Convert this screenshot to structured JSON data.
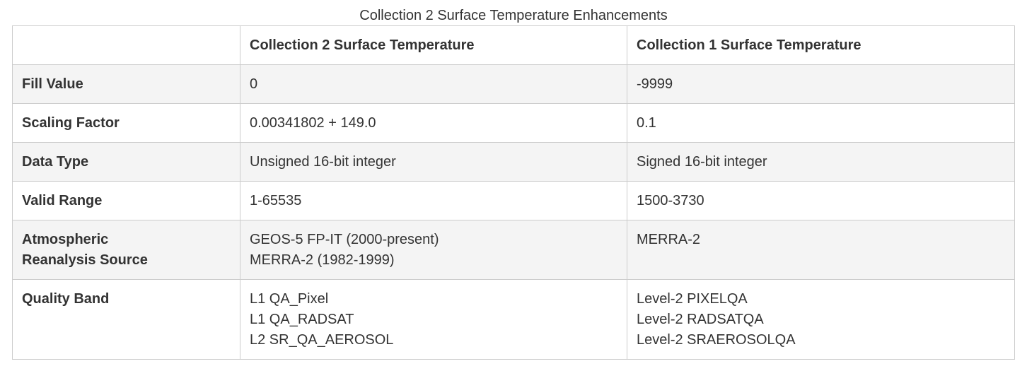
{
  "caption": "Collection 2 Surface Temperature Enhancements",
  "table": {
    "headers": [
      "",
      "Collection 2 Surface Temperature",
      "Collection 1 Surface Temperature"
    ],
    "rows": [
      {
        "label": "Fill Value",
        "c2": [
          "0"
        ],
        "c1": [
          "-9999"
        ]
      },
      {
        "label": "Scaling Factor",
        "c2": [
          "0.00341802 + 149.0"
        ],
        "c1": [
          "0.1"
        ]
      },
      {
        "label": "Data Type",
        "c2": [
          "Unsigned 16-bit integer"
        ],
        "c1": [
          "Signed 16-bit integer"
        ]
      },
      {
        "label": "Valid Range",
        "c2": [
          "1-65535"
        ],
        "c1": [
          "1500-3730"
        ]
      },
      {
        "label": "Atmospheric Reanalysis Source",
        "label_lines": [
          "Atmospheric",
          "Reanalysis Source"
        ],
        "c2": [
          "GEOS-5 FP-IT (2000-present)",
          "MERRA-2 (1982-1999)"
        ],
        "c1": [
          "MERRA-2"
        ]
      },
      {
        "label": "Quality Band",
        "c2": [
          "L1 QA_Pixel",
          "L1 QA_RADSAT",
          "L2 SR_QA_AEROSOL"
        ],
        "c1": [
          "Level-2 PIXELQA",
          "Level-2 RADSATQA",
          "Level-2 SRAEROSOLQA"
        ]
      }
    ]
  }
}
